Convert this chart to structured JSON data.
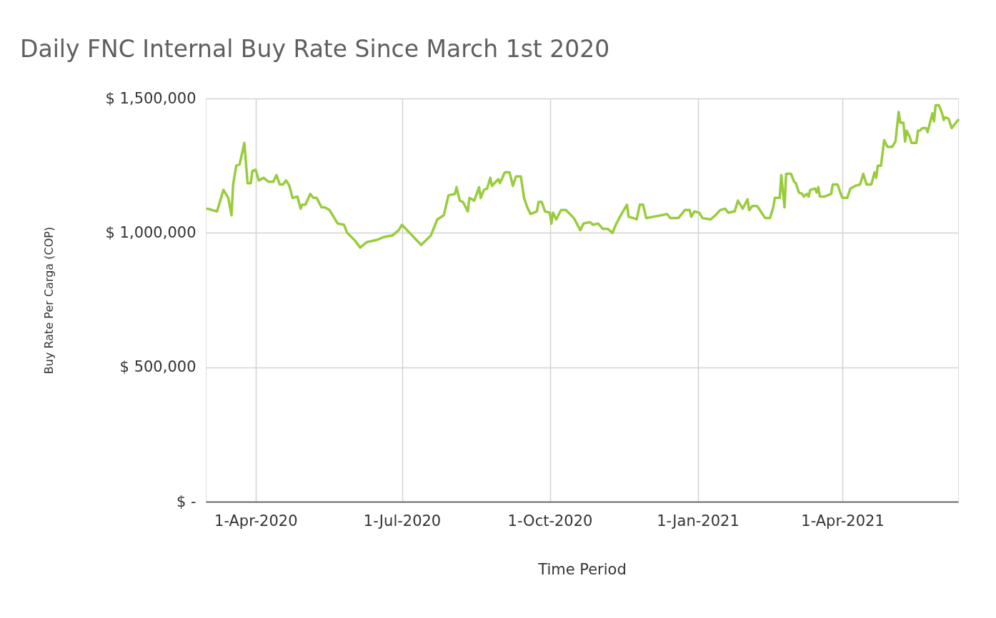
{
  "chart_data": {
    "type": "line",
    "title": "Daily FNC Internal Buy Rate Since March 1st 2020",
    "xlabel": "Time Period",
    "ylabel": "Buy Rate Per Carga (COP)",
    "color": "#99cc3d",
    "grid": true,
    "xlim": [
      "2020-03-01",
      "2021-06-12"
    ],
    "xticks": [
      {
        "value": "2020-04-01",
        "label": "1-Apr-2020"
      },
      {
        "value": "2020-07-01",
        "label": "1-Jul-2020"
      },
      {
        "value": "2020-10-01",
        "label": "1-Oct-2020"
      },
      {
        "value": "2021-01-01",
        "label": "1-Jan-2021"
      },
      {
        "value": "2021-04-01",
        "label": "1-Apr-2021"
      }
    ],
    "ylim": [
      0,
      1500000
    ],
    "yticks": [
      {
        "value": 0,
        "label": "$ -"
      },
      {
        "value": 500000,
        "label": "$ 500,000"
      },
      {
        "value": 1000000,
        "label": "$ 1,000,000"
      },
      {
        "value": 1500000,
        "label": "$ 1,500,000"
      }
    ],
    "x": [
      "2020-03-02",
      "2020-03-08",
      "2020-03-12",
      "2020-03-15",
      "2020-03-17",
      "2020-03-18",
      "2020-03-20",
      "2020-03-22",
      "2020-03-23",
      "2020-03-25",
      "2020-03-27",
      "2020-03-29",
      "2020-03-30",
      "2020-04-01",
      "2020-04-03",
      "2020-04-06",
      "2020-04-09",
      "2020-04-12",
      "2020-04-14",
      "2020-04-16",
      "2020-04-18",
      "2020-04-20",
      "2020-04-22",
      "2020-04-24",
      "2020-04-27",
      "2020-04-29",
      "2020-04-30",
      "2020-05-02",
      "2020-05-05",
      "2020-05-07",
      "2020-05-09",
      "2020-05-12",
      "2020-05-14",
      "2020-05-17",
      "2020-05-22",
      "2020-05-26",
      "2020-05-28",
      "2020-06-02",
      "2020-06-05",
      "2020-06-09",
      "2020-06-16",
      "2020-06-20",
      "2020-06-25",
      "2020-06-29",
      "2020-07-01",
      "2020-07-13",
      "2020-07-19",
      "2020-07-23",
      "2020-07-27",
      "2020-07-30",
      "2020-08-03",
      "2020-08-04",
      "2020-08-06",
      "2020-08-08",
      "2020-08-11",
      "2020-08-12",
      "2020-08-15",
      "2020-08-18",
      "2020-08-19",
      "2020-08-21",
      "2020-08-23",
      "2020-08-25",
      "2020-08-26",
      "2020-08-30",
      "2020-08-31",
      "2020-09-03",
      "2020-09-06",
      "2020-09-08",
      "2020-09-10",
      "2020-09-13",
      "2020-09-15",
      "2020-09-17",
      "2020-09-19",
      "2020-09-23",
      "2020-09-24",
      "2020-09-26",
      "2020-09-28",
      "2020-10-01",
      "2020-10-02",
      "2020-10-03",
      "2020-10-05",
      "2020-10-08",
      "2020-10-11",
      "2020-10-16",
      "2020-10-20",
      "2020-10-22",
      "2020-10-26",
      "2020-10-28",
      "2020-10-31",
      "2020-11-03",
      "2020-11-06",
      "2020-11-09",
      "2020-11-11",
      "2020-11-15",
      "2020-11-18",
      "2020-11-19",
      "2020-11-22",
      "2020-11-24",
      "2020-11-26",
      "2020-11-28",
      "2020-11-30",
      "2020-12-13",
      "2020-12-15",
      "2020-12-20",
      "2020-12-24",
      "2020-12-27",
      "2020-12-28",
      "2020-12-30",
      "2021-01-02",
      "2021-01-04",
      "2021-01-09",
      "2021-01-12",
      "2021-01-15",
      "2021-01-18",
      "2021-01-20",
      "2021-01-24",
      "2021-01-26",
      "2021-01-29",
      "2021-02-01",
      "2021-02-02",
      "2021-02-04",
      "2021-02-07",
      "2021-02-12",
      "2021-02-15",
      "2021-02-17",
      "2021-02-18",
      "2021-02-21",
      "2021-02-22",
      "2021-02-24",
      "2021-02-25",
      "2021-02-28",
      "2021-03-02",
      "2021-03-03",
      "2021-03-05",
      "2021-03-07",
      "2021-03-08",
      "2021-03-10",
      "2021-03-11",
      "2021-03-12",
      "2021-03-15",
      "2021-03-16",
      "2021-03-17",
      "2021-03-18",
      "2021-03-21",
      "2021-03-23",
      "2021-03-25",
      "2021-03-26",
      "2021-03-29",
      "2021-03-31",
      "2021-04-01",
      "2021-04-04",
      "2021-04-06",
      "2021-04-09",
      "2021-04-12",
      "2021-04-14",
      "2021-04-16",
      "2021-04-19",
      "2021-04-21",
      "2021-04-22",
      "2021-04-23",
      "2021-04-25",
      "2021-04-27",
      "2021-04-29",
      "2021-05-02",
      "2021-05-04",
      "2021-05-06",
      "2021-05-07",
      "2021-05-09",
      "2021-05-10",
      "2021-05-11",
      "2021-05-13",
      "2021-05-14",
      "2021-05-17",
      "2021-05-18",
      "2021-05-19",
      "2021-05-21",
      "2021-05-23",
      "2021-05-24",
      "2021-05-27",
      "2021-05-28",
      "2021-05-29",
      "2021-05-31",
      "2021-06-02",
      "2021-06-03",
      "2021-06-04",
      "2021-06-06",
      "2021-06-08",
      "2021-06-10",
      "2021-06-12"
    ],
    "values": [
      1090000,
      1080000,
      1160000,
      1130000,
      1065000,
      1180000,
      1250000,
      1255000,
      1280000,
      1335000,
      1185000,
      1185000,
      1230000,
      1235000,
      1195000,
      1205000,
      1190000,
      1190000,
      1215000,
      1180000,
      1180000,
      1195000,
      1175000,
      1130000,
      1135000,
      1090000,
      1105000,
      1105000,
      1145000,
      1130000,
      1130000,
      1095000,
      1095000,
      1085000,
      1035000,
      1030000,
      1000000,
      970000,
      945000,
      965000,
      975000,
      985000,
      990000,
      1010000,
      1030000,
      955000,
      990000,
      1050000,
      1065000,
      1140000,
      1145000,
      1170000,
      1120000,
      1115000,
      1080000,
      1130000,
      1120000,
      1170000,
      1130000,
      1160000,
      1165000,
      1205000,
      1175000,
      1200000,
      1185000,
      1225000,
      1225000,
      1175000,
      1210000,
      1210000,
      1130000,
      1095000,
      1070000,
      1080000,
      1115000,
      1115000,
      1080000,
      1075000,
      1035000,
      1075000,
      1050000,
      1085000,
      1085000,
      1055000,
      1010000,
      1035000,
      1040000,
      1030000,
      1035000,
      1015000,
      1015000,
      1000000,
      1030000,
      1075000,
      1105000,
      1060000,
      1055000,
      1050000,
      1105000,
      1105000,
      1055000,
      1070000,
      1055000,
      1055000,
      1085000,
      1085000,
      1060000,
      1080000,
      1075000,
      1055000,
      1050000,
      1065000,
      1085000,
      1090000,
      1075000,
      1080000,
      1120000,
      1090000,
      1125000,
      1085000,
      1100000,
      1100000,
      1055000,
      1055000,
      1095000,
      1130000,
      1130000,
      1215000,
      1095000,
      1220000,
      1220000,
      1190000,
      1185000,
      1150000,
      1145000,
      1135000,
      1145000,
      1135000,
      1160000,
      1165000,
      1150000,
      1170000,
      1135000,
      1135000,
      1140000,
      1145000,
      1180000,
      1180000,
      1145000,
      1130000,
      1130000,
      1165000,
      1175000,
      1180000,
      1220000,
      1180000,
      1180000,
      1225000,
      1205000,
      1250000,
      1250000,
      1345000,
      1320000,
      1320000,
      1340000,
      1450000,
      1410000,
      1410000,
      1340000,
      1380000,
      1355000,
      1335000,
      1335000,
      1380000,
      1380000,
      1390000,
      1390000,
      1375000,
      1445000,
      1415000,
      1475000,
      1475000,
      1445000,
      1420000,
      1430000,
      1425000,
      1390000,
      1405000,
      1420000
    ]
  }
}
